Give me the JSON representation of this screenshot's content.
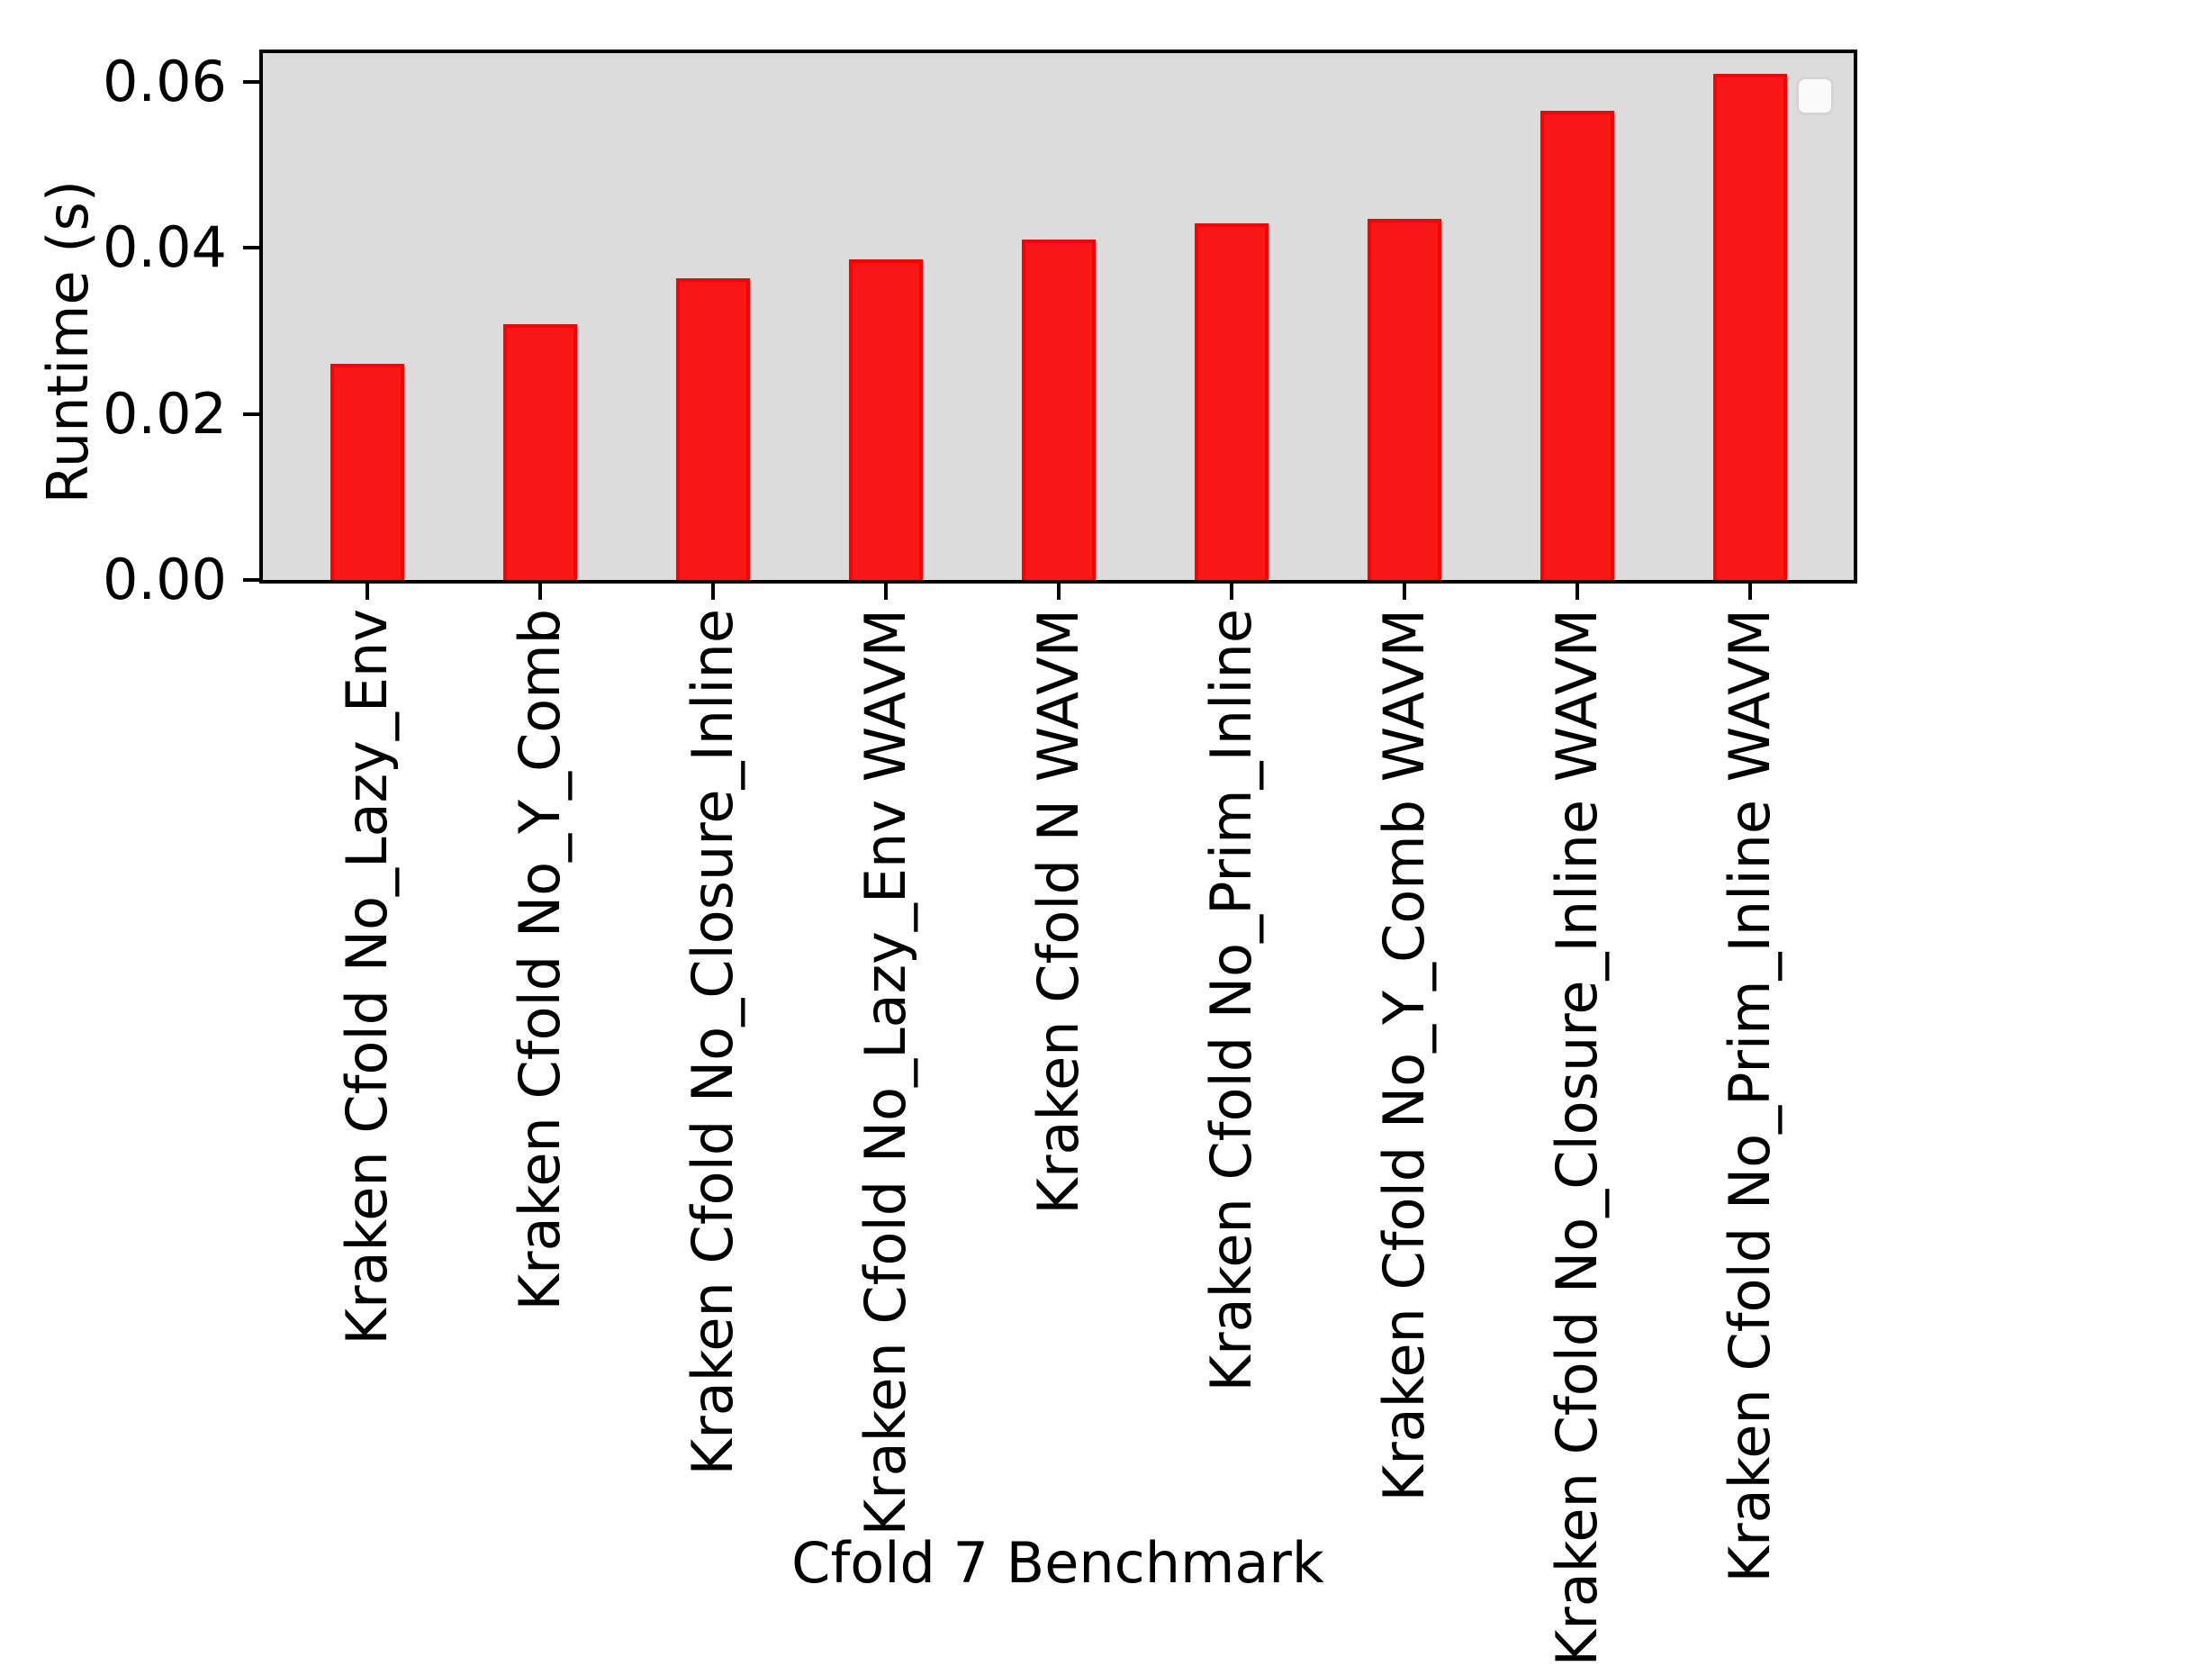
{
  "chart_data": {
    "type": "bar",
    "title": "",
    "xlabel": "Cfold 7 Benchmark",
    "ylabel": "Runtime (s)",
    "categories": [
      "Kraken Cfold No_Lazy_Env",
      "Kraken Cfold No_Y_Comb",
      "Kraken Cfold No_Closure_Inline",
      "Kraken Cfold No_Lazy_Env WAVM",
      "Kraken Cfold N WAVM",
      "Kraken Cfold No_Prim_Inline",
      "Kraken Cfold No_Y_Comb WAVM",
      "Kraken Cfold No_Closure_Inline WAVM",
      "Kraken Cfold No_Prim_Inline WAVM"
    ],
    "values": [
      0.0261,
      0.0308,
      0.0364,
      0.0386,
      0.041,
      0.043,
      0.0435,
      0.0566,
      0.061
    ],
    "yticks": [
      "0.00",
      "0.02",
      "0.04",
      "0.06"
    ],
    "ytick_values": [
      0.0,
      0.02,
      0.04,
      0.06
    ],
    "ylim": [
      0,
      0.0635
    ],
    "grid": false,
    "legend": {
      "visible": true,
      "entries": [],
      "position": "upper-right"
    },
    "colors": {
      "bar_fill": "#f81616",
      "bar_edge": "#ff0000",
      "plot_background": "#dcdcdc",
      "spine": "#000000",
      "text": "#000000"
    }
  }
}
